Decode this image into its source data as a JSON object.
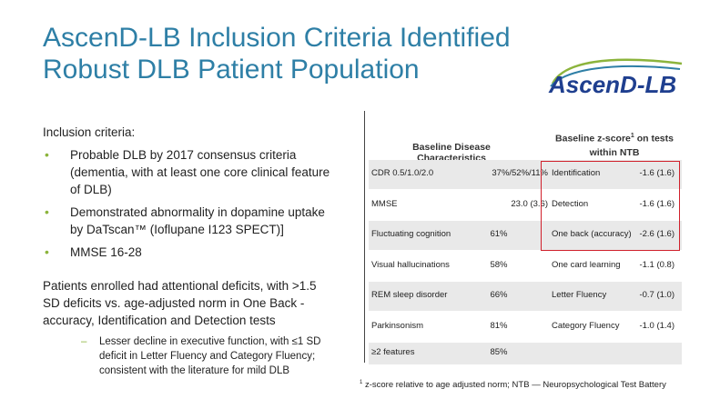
{
  "slide": {
    "title_line1": "AscenD-LB Inclusion Criteria Identified",
    "title_line2": "Robust DLB Patient Population",
    "logo_text": "AscenD-LB"
  },
  "left": {
    "intro": "Inclusion criteria:",
    "bullets": [
      "Probable DLB by 2017 consensus criteria (dementia, with at least one core clinical feature of DLB)",
      "Demonstrated abnormality in dopamine uptake by DaTscan™ (Ioflupane I123 SPECT)]",
      "MMSE 16-28"
    ],
    "para": "Patients enrolled had attentional deficits, with >1.5 SD deficits vs. age-adjusted norm in One Back - accuracy, Identification and Detection tests",
    "sub": "Lesser decline in executive function, with ≤1 SD deficit in Letter Fluency and Category Fluency; consistent with the literature for mild DLB"
  },
  "table": {
    "header_left": "Baseline Disease Characteristics",
    "header_right_1": "Baseline z-score",
    "header_right_sup": "1",
    "header_right_2": " on tests",
    "header_right_3": "within NTB",
    "rows": [
      {
        "label": "CDR 0.5/1.0/2.0",
        "value": "37%/52%/11%",
        "test": "Identification",
        "score": "-1.6 (1.6)"
      },
      {
        "label": "MMSE",
        "value": "23.0 (3.6)",
        "test": "Detection",
        "score": "-1.6 (1.6)"
      },
      {
        "label": "Fluctuating cognition",
        "value": "61%",
        "test": "One back (accuracy)",
        "score": "-2.6 (1.6)"
      },
      {
        "label": "Visual hallucinations",
        "value": "58%",
        "test": "One card learning",
        "score": "-1.1 (0.8)"
      },
      {
        "label": "REM sleep disorder",
        "value": "66%",
        "test": "Letter Fluency",
        "score": "-0.7 (1.0)"
      },
      {
        "label": "Parkinsonism",
        "value": "81%",
        "test": "Category Fluency",
        "score": "-1.0 (1.4)"
      },
      {
        "label": "≥2 features",
        "value": "85%",
        "test": "",
        "score": ""
      }
    ]
  },
  "footnote": {
    "sup": "1",
    "text": " z-score relative to age adjusted norm; NTB — Neuropsychological Test Battery"
  },
  "colors": {
    "title": "#2e7fa6",
    "bullet": "#8cb43c",
    "highlight_box": "#d0202b",
    "row_shade": "#e9e9e9"
  }
}
